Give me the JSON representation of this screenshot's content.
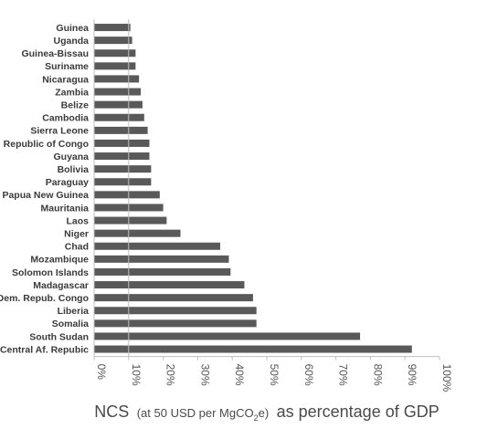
{
  "chart_data": {
    "type": "bar",
    "orientation": "horizontal",
    "categories": [
      "Guinea",
      "Uganda",
      "Guinea-Bissau",
      "Suriname",
      "Nicaragua",
      "Zambia",
      "Belize",
      "Cambodia",
      "Sierra Leone",
      "Republic of Congo",
      "Guyana",
      "Bolivia",
      "Paraguay",
      "Papua New Guinea",
      "Mauritania",
      "Laos",
      "Niger",
      "Chad",
      "Mozambique",
      "Solomon Islands",
      "Madagascar",
      "Dem. Repub. Congo",
      "Liberia",
      "Somalia",
      "South Sudan",
      "Central Af. Repubic"
    ],
    "values": [
      10.5,
      11,
      12,
      12,
      13,
      13.5,
      14,
      14.5,
      15.5,
      16,
      16,
      16.5,
      16.5,
      19,
      20,
      21,
      25,
      36.5,
      39,
      39.5,
      43.5,
      46,
      47,
      47,
      77,
      92
    ],
    "xlim": [
      0,
      100
    ],
    "x_ticks": [
      "0%",
      "10%",
      "20%",
      "30%",
      "40%",
      "50%",
      "60%",
      "70%",
      "80%",
      "90%",
      "100%"
    ],
    "xlabel": {
      "main": "NCS",
      "paren_prefix": "(at 50 USD per MgCO",
      "paren_sub": "2",
      "paren_suffix": "e)",
      "tail": "as percentage of GDP"
    },
    "bar_color": "#595959",
    "axis_color": "#bfbfbf",
    "grid": false,
    "legend": "none"
  }
}
